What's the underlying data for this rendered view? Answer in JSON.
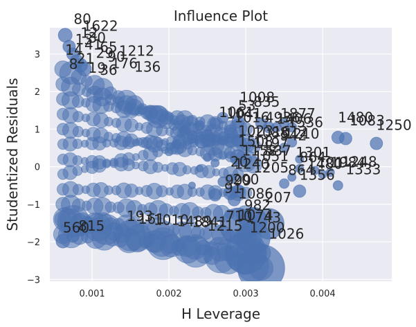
{
  "chart_data": {
    "type": "scatter",
    "title": "Influence Plot",
    "xlabel": "H Leverage",
    "ylabel": "Studentized Residuals",
    "xlim": [
      0.00045,
      0.0049
    ],
    "ylim": [
      -3.05,
      3.7
    ],
    "grid": true,
    "x_ticks": [
      {
        "value": 0.001,
        "label": "0.001"
      },
      {
        "value": 0.002,
        "label": "0.002"
      },
      {
        "value": 0.003,
        "label": "0.003"
      },
      {
        "value": 0.004,
        "label": "0.004"
      }
    ],
    "y_ticks": [
      {
        "value": -3,
        "label": "−3"
      },
      {
        "value": -2,
        "label": "−2"
      },
      {
        "value": -1,
        "label": "−1"
      },
      {
        "value": 0,
        "label": "0"
      },
      {
        "value": 1,
        "label": "1"
      },
      {
        "value": 2,
        "label": "2"
      },
      {
        "value": 3,
        "label": "3"
      }
    ],
    "marker_color": "#4c72b0",
    "bands": [
      {
        "from": [
          0.00062,
          2.6
        ],
        "to": [
          0.0031,
          0.05
        ],
        "size": 14
      },
      {
        "from": [
          0.00062,
          2.2
        ],
        "to": [
          0.0031,
          0.55
        ],
        "size": 12
      },
      {
        "from": [
          0.00062,
          1.8
        ],
        "to": [
          0.003,
          1.0
        ],
        "size": 11
      },
      {
        "from": [
          0.00062,
          1.4
        ],
        "to": [
          0.003,
          0.6
        ],
        "size": 10
      },
      {
        "from": [
          0.00062,
          1.0
        ],
        "to": [
          0.003,
          0.2
        ],
        "size": 10
      },
      {
        "from": [
          0.00062,
          0.6
        ],
        "to": [
          0.0029,
          0.7
        ],
        "size": 9
      },
      {
        "from": [
          0.00062,
          0.2
        ],
        "to": [
          0.0029,
          -0.2
        ],
        "size": 9
      },
      {
        "from": [
          0.00062,
          -0.2
        ],
        "to": [
          0.0029,
          0.9
        ],
        "size": 9
      },
      {
        "from": [
          0.00062,
          -0.6
        ],
        "to": [
          0.003,
          -0.7
        ],
        "size": 10
      },
      {
        "from": [
          0.00062,
          -1.0
        ],
        "to": [
          0.0031,
          -1.3
        ],
        "size": 12
      },
      {
        "from": [
          0.00062,
          -1.4
        ],
        "to": [
          0.0031,
          -1.9
        ],
        "size": 14
      },
      {
        "from": [
          0.00062,
          -1.8
        ],
        "to": [
          0.0032,
          -2.3
        ],
        "size": 16
      },
      {
        "from": [
          0.00065,
          -1.4
        ],
        "to": [
          0.0032,
          -2.7
        ],
        "size": 20
      }
    ],
    "points": [
      {
        "x": 0.00062,
        "y": -1.98,
        "s": 10
      },
      {
        "x": 0.00075,
        "y": -1.85,
        "s": 9
      },
      {
        "x": 0.00085,
        "y": -1.7,
        "s": 8
      },
      {
        "x": 0.0029,
        "y": -1.58,
        "s": 26
      },
      {
        "x": 0.0033,
        "y": -1.52,
        "s": 22
      },
      {
        "x": 0.0031,
        "y": -1.45,
        "s": 20
      },
      {
        "x": 0.0032,
        "y": -2.7,
        "s": 34
      },
      {
        "x": 0.003,
        "y": -2.3,
        "s": 30
      },
      {
        "x": 0.0031,
        "y": -1.9,
        "s": 24
      },
      {
        "x": 0.0026,
        "y": -0.75,
        "s": 9
      },
      {
        "x": 0.0028,
        "y": -0.7,
        "s": 10
      },
      {
        "x": 0.0029,
        "y": -0.65,
        "s": 9
      },
      {
        "x": 0.00285,
        "y": -0.88,
        "s": 9
      },
      {
        "x": 0.0027,
        "y": -0.4,
        "s": 7
      },
      {
        "x": 0.0028,
        "y": -0.33,
        "s": 7
      },
      {
        "x": 0.0035,
        "y": -0.45,
        "s": 7
      },
      {
        "x": 0.0036,
        "y": -0.28,
        "s": 6
      },
      {
        "x": 0.0037,
        "y": -0.65,
        "s": 9
      },
      {
        "x": 0.0037,
        "y": -0.05,
        "s": 6
      },
      {
        "x": 0.0039,
        "y": -0.1,
        "s": 6
      },
      {
        "x": 0.004,
        "y": -0.2,
        "s": 6
      },
      {
        "x": 0.0041,
        "y": -0.15,
        "s": 6
      },
      {
        "x": 0.0042,
        "y": -0.5,
        "s": 7
      },
      {
        "x": 0.0042,
        "y": 0.78,
        "s": 9
      },
      {
        "x": 0.0043,
        "y": 0.75,
        "s": 9
      },
      {
        "x": 0.0047,
        "y": 0.62,
        "s": 9
      },
      {
        "x": 0.0035,
        "y": 0.5,
        "s": 7
      },
      {
        "x": 0.0036,
        "y": 0.65,
        "s": 7
      },
      {
        "x": 0.0037,
        "y": 0.2,
        "s": 6
      },
      {
        "x": 0.0034,
        "y": 1.05,
        "s": 7
      },
      {
        "x": 0.0035,
        "y": 1.15,
        "s": 7
      },
      {
        "x": 0.0036,
        "y": 1.05,
        "s": 7
      },
      {
        "x": 0.0032,
        "y": 1.15,
        "s": 8
      },
      {
        "x": 0.0033,
        "y": 1.05,
        "s": 8
      },
      {
        "x": 0.0029,
        "y": 1.2,
        "s": 9
      },
      {
        "x": 0.0028,
        "y": 0.95,
        "s": 9
      },
      {
        "x": 0.0027,
        "y": 1.3,
        "s": 8
      },
      {
        "x": 0.0026,
        "y": 1.15,
        "s": 8
      },
      {
        "x": 0.0025,
        "y": 0.85,
        "s": 8
      },
      {
        "x": 0.0024,
        "y": 1.1,
        "s": 7
      },
      {
        "x": 0.0023,
        "y": 0.75,
        "s": 7
      },
      {
        "x": 0.0022,
        "y": 0.95,
        "s": 7
      },
      {
        "x": 0.0021,
        "y": 0.6,
        "s": 7
      },
      {
        "x": 0.002,
        "y": 0.4,
        "s": 6
      },
      {
        "x": 0.0024,
        "y": -0.05,
        "s": 5
      },
      {
        "x": 0.0025,
        "y": 0.25,
        "s": 6
      },
      {
        "x": 0.0026,
        "y": 0.1,
        "s": 6
      },
      {
        "x": 0.0023,
        "y": -0.5,
        "s": 5
      },
      {
        "x": 0.00065,
        "y": 3.5,
        "s": 10
      },
      {
        "x": 0.0007,
        "y": 3.2,
        "s": 9
      },
      {
        "x": 0.00075,
        "y": 3.0,
        "s": 9
      },
      {
        "x": 0.0008,
        "y": 2.8,
        "s": 10
      },
      {
        "x": 0.00085,
        "y": 2.7,
        "s": 10
      },
      {
        "x": 0.0009,
        "y": 2.6,
        "s": 10
      }
    ],
    "annotations": [
      {
        "text": "80",
        "x": 0.00076,
        "y": 3.8
      },
      {
        "text": "1622",
        "x": 0.00088,
        "y": 3.62
      },
      {
        "text": "12",
        "x": 0.00085,
        "y": 3.43
      },
      {
        "text": "30",
        "x": 0.00095,
        "y": 3.3
      },
      {
        "text": "13",
        "x": 0.00078,
        "y": 3.26
      },
      {
        "text": "41",
        "x": 0.0009,
        "y": 3.12
      },
      {
        "text": "65",
        "x": 0.0011,
        "y": 3.05
      },
      {
        "text": "1212",
        "x": 0.00135,
        "y": 2.95
      },
      {
        "text": "14",
        "x": 0.00065,
        "y": 2.98
      },
      {
        "text": "29",
        "x": 0.00105,
        "y": 2.9
      },
      {
        "text": "90",
        "x": 0.0012,
        "y": 2.8
      },
      {
        "text": "21",
        "x": 0.0008,
        "y": 2.75
      },
      {
        "text": "176",
        "x": 0.00125,
        "y": 2.62
      },
      {
        "text": "136",
        "x": 0.00155,
        "y": 2.53
      },
      {
        "text": "19",
        "x": 0.00095,
        "y": 2.5
      },
      {
        "text": "36",
        "x": 0.0011,
        "y": 2.45
      },
      {
        "text": "8",
        "x": 0.0007,
        "y": 2.6
      },
      {
        "text": "1008",
        "x": 0.00292,
        "y": 1.72
      },
      {
        "text": "835",
        "x": 0.0031,
        "y": 1.6
      },
      {
        "text": "53",
        "x": 0.0029,
        "y": 1.5
      },
      {
        "text": "1041",
        "x": 0.00275,
        "y": 1.28
      },
      {
        "text": "1061",
        "x": 0.00265,
        "y": 1.32
      },
      {
        "text": "1016",
        "x": 0.00285,
        "y": 1.18
      },
      {
        "text": "4936",
        "x": 0.00325,
        "y": 1.18
      },
      {
        "text": "1877",
        "x": 0.00345,
        "y": 1.28
      },
      {
        "text": "1536",
        "x": 0.00355,
        "y": 1.05
      },
      {
        "text": "1406",
        "x": 0.0034,
        "y": 1.15
      },
      {
        "text": "1480",
        "x": 0.0042,
        "y": 1.18
      },
      {
        "text": "1083",
        "x": 0.00435,
        "y": 1.1
      },
      {
        "text": "1250",
        "x": 0.0047,
        "y": 0.98
      },
      {
        "text": "1023",
        "x": 0.0029,
        "y": 0.82
      },
      {
        "text": "1088",
        "x": 0.0031,
        "y": 0.78
      },
      {
        "text": "1612",
        "x": 0.00335,
        "y": 0.8
      },
      {
        "text": "542",
        "x": 0.00345,
        "y": 0.7
      },
      {
        "text": "1210",
        "x": 0.0035,
        "y": 0.75
      },
      {
        "text": "1197",
        "x": 0.0031,
        "y": 0.5
      },
      {
        "text": "1508",
        "x": 0.0029,
        "y": 0.55
      },
      {
        "text": "537",
        "x": 0.00325,
        "y": 0.3
      },
      {
        "text": "1158",
        "x": 0.00295,
        "y": 0.3
      },
      {
        "text": "1051",
        "x": 0.0031,
        "y": 0.15
      },
      {
        "text": "1301",
        "x": 0.00365,
        "y": 0.25
      },
      {
        "text": "864",
        "x": 0.0037,
        "y": 0.12
      },
      {
        "text": "1480",
        "x": 0.0038,
        "y": -0.05
      },
      {
        "text": "101",
        "x": 0.00393,
        "y": -0.02
      },
      {
        "text": "1984",
        "x": 0.0041,
        "y": -0.02
      },
      {
        "text": "1248",
        "x": 0.00425,
        "y": 0.0
      },
      {
        "text": "1333",
        "x": 0.0043,
        "y": -0.2
      },
      {
        "text": "864",
        "x": 0.00355,
        "y": -0.22
      },
      {
        "text": "1356",
        "x": 0.0037,
        "y": -0.35
      },
      {
        "text": "20",
        "x": 0.0028,
        "y": 0.0
      },
      {
        "text": "1240",
        "x": 0.00285,
        "y": -0.05
      },
      {
        "text": "1205",
        "x": 0.0031,
        "y": -0.15
      },
      {
        "text": "999",
        "x": 0.00273,
        "y": -0.5
      },
      {
        "text": "200",
        "x": 0.00283,
        "y": -0.47
      },
      {
        "text": "1086",
        "x": 0.0029,
        "y": -0.85
      },
      {
        "text": "207",
        "x": 0.00325,
        "y": -0.95
      },
      {
        "text": "91",
        "x": 0.00272,
        "y": -0.7
      },
      {
        "text": "982",
        "x": 0.00298,
        "y": -1.15
      },
      {
        "text": "710",
        "x": 0.00274,
        "y": -1.45
      },
      {
        "text": "1074",
        "x": 0.0029,
        "y": -1.42
      },
      {
        "text": "1743",
        "x": 0.003,
        "y": -1.48
      },
      {
        "text": "1200",
        "x": 0.00305,
        "y": -1.75
      },
      {
        "text": "1026",
        "x": 0.0033,
        "y": -1.92
      },
      {
        "text": "560",
        "x": 0.00062,
        "y": -1.75
      },
      {
        "text": "815",
        "x": 0.00082,
        "y": -1.7
      },
      {
        "text": "193",
        "x": 0.00145,
        "y": -1.45
      },
      {
        "text": "161",
        "x": 0.0016,
        "y": -1.52
      },
      {
        "text": "1010",
        "x": 0.0018,
        "y": -1.55
      },
      {
        "text": "1489",
        "x": 0.0021,
        "y": -1.58
      },
      {
        "text": "1841",
        "x": 0.0023,
        "y": -1.6
      },
      {
        "text": "1215",
        "x": 0.0025,
        "y": -1.7
      }
    ]
  }
}
